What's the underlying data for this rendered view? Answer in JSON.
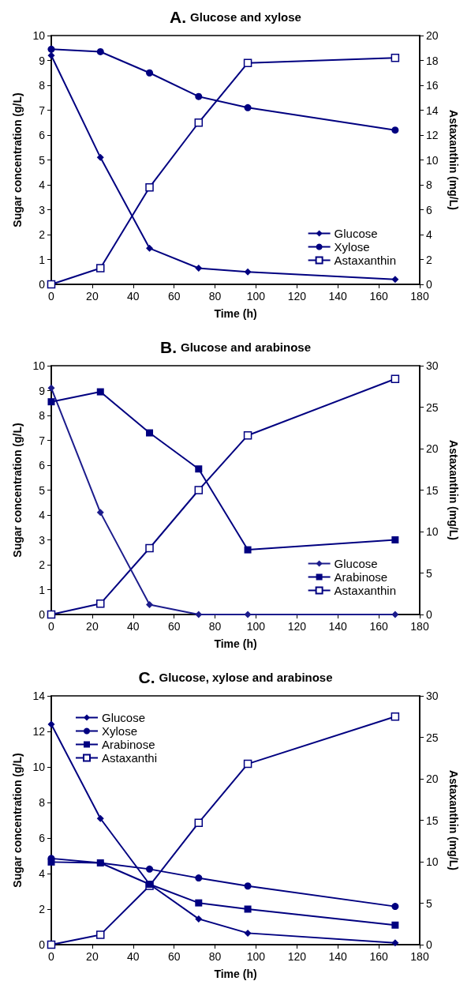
{
  "chart_data": [
    {
      "type": "line",
      "title": "A. Glucose and xylose",
      "xlabel": "Time (h)",
      "ylabel": "Sugar concentration (g/L)",
      "y2label": "Astaxanthin (mg/L)",
      "x": [
        0,
        24,
        48,
        72,
        96,
        168
      ],
      "xlim": [
        0,
        180
      ],
      "xticks": [
        0,
        20,
        40,
        60,
        80,
        100,
        120,
        140,
        160,
        180
      ],
      "ylim": [
        0,
        10
      ],
      "yticks": [
        0,
        1,
        2,
        3,
        4,
        5,
        6,
        7,
        8,
        9,
        10
      ],
      "y2lim": [
        0,
        20
      ],
      "y2ticks": [
        0,
        2,
        4,
        6,
        8,
        10,
        12,
        14,
        16,
        18,
        20
      ],
      "grid": false,
      "legend": "bottom right",
      "line_style": "solid",
      "series": [
        {
          "name": "Glucose",
          "color": "#000080",
          "marker": "diamond",
          "values": [
            9.2,
            5.1,
            1.45,
            0.65,
            0.5,
            0.2
          ]
        },
        {
          "name": "Xylose",
          "color": "#000080",
          "marker": "circle",
          "values": [
            9.45,
            9.35,
            8.5,
            7.55,
            7.1,
            6.2
          ]
        },
        {
          "name": "Astaxanthin",
          "color": "#000080",
          "marker": "square",
          "axis": "y2",
          "values": [
            0,
            1.3,
            7.8,
            13,
            17.8,
            18.2
          ]
        }
      ]
    },
    {
      "type": "line",
      "title": "B. Glucose and arabinose",
      "xlabel": "Time (h)",
      "ylabel": "Sugar concentration (g/L)",
      "y2label": "Astaxanthin (mg/L)",
      "x": [
        0,
        24,
        48,
        72,
        96,
        168
      ],
      "xlim": [
        0,
        180
      ],
      "xticks": [
        0,
        20,
        40,
        60,
        80,
        100,
        120,
        140,
        160,
        180
      ],
      "ylim": [
        0,
        10
      ],
      "yticks": [
        0,
        1,
        2,
        3,
        4,
        5,
        6,
        7,
        8,
        9,
        10
      ],
      "y2lim": [
        0,
        30
      ],
      "y2ticks": [
        0,
        5,
        10,
        15,
        20,
        25,
        30
      ],
      "grid": false,
      "legend": "bottom right",
      "line_style": "solid",
      "series": [
        {
          "name": "Glucose",
          "color": "#1c1c8c",
          "marker": "diamond",
          "values": [
            9.1,
            4.1,
            0.4,
            0,
            0,
            0
          ]
        },
        {
          "name": "Arabinose",
          "color": "#000080",
          "marker": "square",
          "values": [
            8.55,
            8.95,
            7.3,
            5.85,
            2.6,
            3.0
          ]
        },
        {
          "name": "Astaxanthin",
          "color": "#000080",
          "marker": "square",
          "axis": "y2",
          "values": [
            0,
            1.3,
            8.0,
            15.0,
            21.6,
            28.4
          ]
        }
      ]
    },
    {
      "type": "line",
      "title": "C. Glucose, xylose and arabinose",
      "xlabel": "Time (h)",
      "ylabel": "Sugar concentration (g/L)",
      "y2label": "Astaxanthin (mg/L)",
      "x": [
        0,
        24,
        48,
        72,
        96,
        168
      ],
      "xlim": [
        0,
        180
      ],
      "xticks": [
        0,
        20,
        40,
        60,
        80,
        100,
        120,
        140,
        160,
        180
      ],
      "ylim": [
        0,
        14
      ],
      "yticks": [
        0,
        2,
        4,
        6,
        8,
        10,
        12,
        14
      ],
      "y2lim": [
        0,
        30
      ],
      "y2ticks": [
        0,
        5,
        10,
        15,
        20,
        25,
        30
      ],
      "grid": false,
      "legend": "top left",
      "line_style": "solid",
      "series": [
        {
          "name": "Glucose",
          "color": "#000080",
          "marker": "diamond",
          "values": [
            12.4,
            7.1,
            3.4,
            1.45,
            0.65,
            0.1
          ]
        },
        {
          "name": "Xylose",
          "color": "#000080",
          "marker": "circle",
          "values": [
            4.85,
            4.6,
            4.25,
            3.75,
            3.3,
            2.15
          ]
        },
        {
          "name": "Arabinose",
          "color": "#000080",
          "marker": "square",
          "values": [
            4.65,
            4.6,
            3.4,
            2.35,
            2.0,
            1.1
          ]
        },
        {
          "name": "Astaxanthi",
          "color": "#000080",
          "marker": "square",
          "axis": "y2",
          "values": [
            0,
            1.2,
            7.1,
            14.7,
            21.8,
            27.5
          ]
        }
      ]
    }
  ]
}
